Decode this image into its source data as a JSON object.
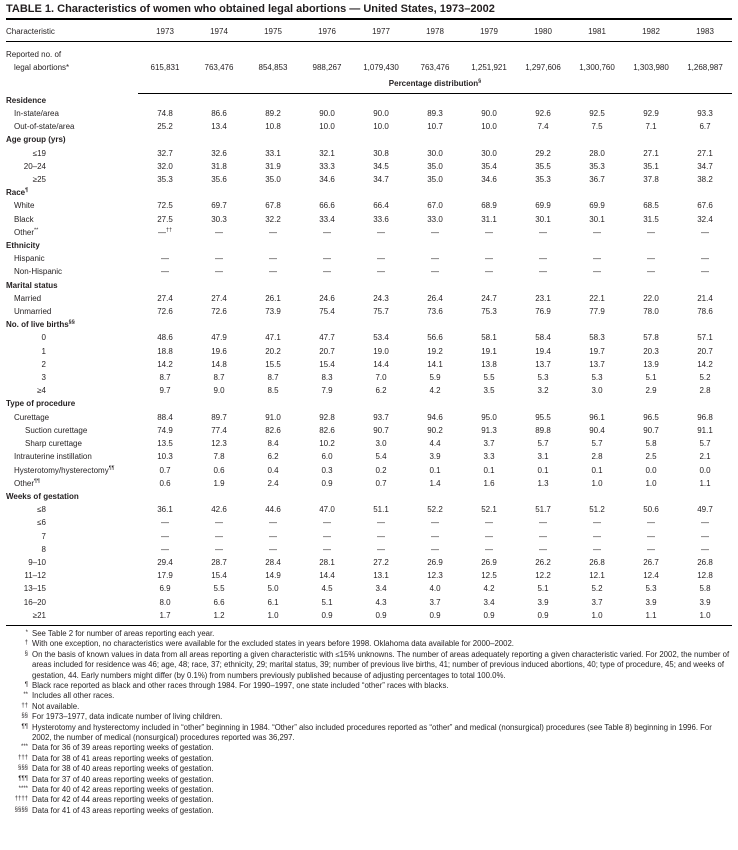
{
  "page": {
    "title": "TABLE 1. Characteristics of women who obtained legal abortions — United States, 1973–2002"
  },
  "table": {
    "col_header": "Characteristic",
    "years": [
      "1973",
      "1974",
      "1975",
      "1976",
      "1977",
      "1978",
      "1979",
      "1980",
      "1981",
      "1982",
      "1983"
    ],
    "reported": {
      "label_line1": "Reported no. of",
      "label_line2": "legal abortions*",
      "values": [
        "615,831",
        "763,476",
        "854,853",
        "988,267",
        "1,079,430",
        "763,476",
        "1,251,921",
        "1,297,606",
        "1,300,760",
        "1,303,980",
        "1,268,987"
      ]
    },
    "percentage_header": {
      "text": "Percentage distribution",
      "sup": "§"
    },
    "sections": [
      {
        "header": "Residence",
        "sup": "",
        "rows": [
          {
            "label": "In-state/area",
            "sup": "",
            "ind": "t1",
            "values": [
              "74.8",
              "86.6",
              "89.2",
              "90.0",
              "90.0",
              "89.3",
              "90.0",
              "92.6",
              "92.5",
              "92.9",
              "93.3"
            ]
          },
          {
            "label": "Out-of-state/area",
            "sup": "",
            "ind": "t1",
            "values": [
              "25.2",
              "13.4",
              "10.8",
              "10.0",
              "10.0",
              "10.7",
              "10.0",
              "7.4",
              "7.5",
              "7.1",
              "6.7"
            ]
          }
        ]
      },
      {
        "header": "Age group (yrs)",
        "sup": "",
        "rows": [
          {
            "label": "≤19",
            "sup": "",
            "ind": "n",
            "values": [
              "32.7",
              "32.6",
              "33.1",
              "32.1",
              "30.8",
              "30.0",
              "30.0",
              "29.2",
              "28.0",
              "27.1",
              "27.1"
            ]
          },
          {
            "label": "20–24",
            "sup": "",
            "ind": "n",
            "values": [
              "32.0",
              "31.8",
              "31.9",
              "33.3",
              "34.5",
              "35.0",
              "35.4",
              "35.5",
              "35.3",
              "35.1",
              "34.7"
            ]
          },
          {
            "label": "≥25",
            "sup": "",
            "ind": "n",
            "values": [
              "35.3",
              "35.6",
              "35.0",
              "34.6",
              "34.7",
              "35.0",
              "34.6",
              "35.3",
              "36.7",
              "37.8",
              "38.2"
            ]
          }
        ]
      },
      {
        "header": "Race",
        "sup": "¶",
        "rows": [
          {
            "label": "White",
            "sup": "",
            "ind": "t1",
            "values": [
              "72.5",
              "69.7",
              "67.8",
              "66.6",
              "66.4",
              "67.0",
              "68.9",
              "69.9",
              "69.9",
              "68.5",
              "67.6"
            ]
          },
          {
            "label": "Black",
            "sup": "",
            "ind": "t1",
            "values": [
              "27.5",
              "30.3",
              "32.2",
              "33.4",
              "33.6",
              "33.0",
              "31.1",
              "30.1",
              "30.1",
              "31.5",
              "32.4"
            ]
          },
          {
            "label": "Other",
            "sup": "**",
            "ind": "t1",
            "values": [
              "—††",
              "—",
              "—",
              "—",
              "—",
              "—",
              "—",
              "—",
              "—",
              "—",
              "—"
            ]
          }
        ]
      },
      {
        "header": "Ethnicity",
        "sup": "",
        "rows": [
          {
            "label": "Hispanic",
            "sup": "",
            "ind": "t1",
            "values": [
              "—",
              "—",
              "—",
              "—",
              "—",
              "—",
              "—",
              "—",
              "—",
              "—",
              "—"
            ]
          },
          {
            "label": "Non-Hispanic",
            "sup": "",
            "ind": "t1",
            "values": [
              "—",
              "—",
              "—",
              "—",
              "—",
              "—",
              "—",
              "—",
              "—",
              "—",
              "—"
            ]
          }
        ]
      },
      {
        "header": "Marital status",
        "sup": "",
        "rows": [
          {
            "label": "Married",
            "sup": "",
            "ind": "t1",
            "values": [
              "27.4",
              "27.4",
              "26.1",
              "24.6",
              "24.3",
              "26.4",
              "24.7",
              "23.1",
              "22.1",
              "22.0",
              "21.4"
            ]
          },
          {
            "label": "Unmarried",
            "sup": "",
            "ind": "t1",
            "values": [
              "72.6",
              "72.6",
              "73.9",
              "75.4",
              "75.7",
              "73.6",
              "75.3",
              "76.9",
              "77.9",
              "78.0",
              "78.6"
            ]
          }
        ]
      },
      {
        "header": "No. of live births",
        "sup": "§§",
        "rows": [
          {
            "label": "0",
            "sup": "",
            "ind": "n",
            "values": [
              "48.6",
              "47.9",
              "47.1",
              "47.7",
              "53.4",
              "56.6",
              "58.1",
              "58.4",
              "58.3",
              "57.8",
              "57.1"
            ]
          },
          {
            "label": "1",
            "sup": "",
            "ind": "n",
            "values": [
              "18.8",
              "19.6",
              "20.2",
              "20.7",
              "19.0",
              "19.2",
              "19.1",
              "19.4",
              "19.7",
              "20.3",
              "20.7"
            ]
          },
          {
            "label": "2",
            "sup": "",
            "ind": "n",
            "values": [
              "14.2",
              "14.8",
              "15.5",
              "15.4",
              "14.4",
              "14.1",
              "13.8",
              "13.7",
              "13.7",
              "13.9",
              "14.2"
            ]
          },
          {
            "label": "3",
            "sup": "",
            "ind": "n",
            "values": [
              "8.7",
              "8.7",
              "8.7",
              "8.3",
              "7.0",
              "5.9",
              "5.5",
              "5.3",
              "5.3",
              "5.1",
              "5.2"
            ]
          },
          {
            "label": "≥4",
            "sup": "",
            "ind": "n",
            "values": [
              "9.7",
              "9.0",
              "8.5",
              "7.9",
              "6.2",
              "4.2",
              "3.5",
              "3.2",
              "3.0",
              "2.9",
              "2.8"
            ]
          }
        ]
      },
      {
        "header": "Type of procedure",
        "sup": "",
        "rows": [
          {
            "label": "Curettage",
            "sup": "",
            "ind": "t1",
            "values": [
              "88.4",
              "89.7",
              "91.0",
              "92.8",
              "93.7",
              "94.6",
              "95.0",
              "95.5",
              "96.1",
              "96.5",
              "96.8"
            ]
          },
          {
            "label": "Suction curettage",
            "sup": "",
            "ind": "t2",
            "values": [
              "74.9",
              "77.4",
              "82.6",
              "82.6",
              "90.7",
              "90.2",
              "91.3",
              "89.8",
              "90.4",
              "90.7",
              "91.1"
            ]
          },
          {
            "label": "Sharp curettage",
            "sup": "",
            "ind": "t2",
            "values": [
              "13.5",
              "12.3",
              "8.4",
              "10.2",
              "3.0",
              "4.4",
              "3.7",
              "5.7",
              "5.7",
              "5.8",
              "5.7"
            ]
          },
          {
            "label": "Intrauterine instillation",
            "sup": "",
            "ind": "t1",
            "values": [
              "10.3",
              "7.8",
              "6.2",
              "6.0",
              "5.4",
              "3.9",
              "3.3",
              "3.1",
              "2.8",
              "2.5",
              "2.1"
            ]
          },
          {
            "label": "Hysterotomy/hysterectomy",
            "sup": "¶¶",
            "ind": "t1",
            "values": [
              "0.7",
              "0.6",
              "0.4",
              "0.3",
              "0.2",
              "0.1",
              "0.1",
              "0.1",
              "0.1",
              "0.0",
              "0.0"
            ]
          },
          {
            "label": "Other",
            "sup": "¶¶",
            "ind": "t1",
            "values": [
              "0.6",
              "1.9",
              "2.4",
              "0.9",
              "0.7",
              "1.4",
              "1.6",
              "1.3",
              "1.0",
              "1.0",
              "1.1"
            ]
          }
        ]
      },
      {
        "header": "Weeks of gestation",
        "sup": "",
        "rows": [
          {
            "label": "≤8",
            "sup": "",
            "ind": "n",
            "values": [
              "36.1",
              "42.6",
              "44.6",
              "47.0",
              "51.1",
              "52.2",
              "52.1",
              "51.7",
              "51.2",
              "50.6",
              "49.7"
            ]
          },
          {
            "label": "≤6",
            "sup": "",
            "ind": "n",
            "values": [
              "—",
              "—",
              "—",
              "—",
              "—",
              "—",
              "—",
              "—",
              "—",
              "—",
              "—"
            ]
          },
          {
            "label": "7",
            "sup": "",
            "ind": "n",
            "values": [
              "—",
              "—",
              "—",
              "—",
              "—",
              "—",
              "—",
              "—",
              "—",
              "—",
              "—"
            ]
          },
          {
            "label": "8",
            "sup": "",
            "ind": "n",
            "values": [
              "—",
              "—",
              "—",
              "—",
              "—",
              "—",
              "—",
              "—",
              "—",
              "—",
              "—"
            ]
          },
          {
            "label": "9–10",
            "sup": "",
            "ind": "n",
            "values": [
              "29.4",
              "28.7",
              "28.4",
              "28.1",
              "27.2",
              "26.9",
              "26.9",
              "26.2",
              "26.8",
              "26.7",
              "26.8"
            ]
          },
          {
            "label": "11–12",
            "sup": "",
            "ind": "n",
            "values": [
              "17.9",
              "15.4",
              "14.9",
              "14.4",
              "13.1",
              "12.3",
              "12.5",
              "12.2",
              "12.1",
              "12.4",
              "12.8"
            ]
          },
          {
            "label": "13–15",
            "sup": "",
            "ind": "n",
            "values": [
              "6.9",
              "5.5",
              "5.0",
              "4.5",
              "3.4",
              "4.0",
              "4.2",
              "5.1",
              "5.2",
              "5.3",
              "5.8"
            ]
          },
          {
            "label": "16–20",
            "sup": "",
            "ind": "n",
            "values": [
              "8.0",
              "6.6",
              "6.1",
              "5.1",
              "4.3",
              "3.7",
              "3.4",
              "3.9",
              "3.7",
              "3.9",
              "3.9"
            ]
          },
          {
            "label": "≥21",
            "sup": "",
            "ind": "n",
            "values": [
              "1.7",
              "1.2",
              "1.0",
              "0.9",
              "0.9",
              "0.9",
              "0.9",
              "0.9",
              "1.0",
              "1.1",
              "1.0"
            ]
          }
        ]
      }
    ]
  },
  "footnotes": [
    {
      "marker": "*",
      "text": "See Table 2 for number of areas reporting each year."
    },
    {
      "marker": "†",
      "text": "With one exception, no characteristics were available for the excluded states in years before 1998. Oklahoma data available for 2000–2002."
    },
    {
      "marker": "§",
      "text": "On the basis of known values in data from all areas reporting a given characteristic with ≤15% unknowns. The number of areas adequately reporting a given characteristic varied. For 2002, the number of areas included for residence was 46; age, 48; race, 37; ethnicity, 29; marital status, 39; number of previous live births, 41; number of previous induced abortions, 40; type of procedure, 45; and weeks of gestation, 44. Early numbers might differ (by 0.1%) from numbers previously published because of adjusting percentages to total 100.0%."
    },
    {
      "marker": "¶",
      "text": "Black race reported as black and other races through 1984. For 1990–1997, one state included “other” races with blacks."
    },
    {
      "marker": "**",
      "text": "Includes all other races."
    },
    {
      "marker": "††",
      "text": "Not available."
    },
    {
      "marker": "§§",
      "text": "For 1973–1977, data indicate number of living children."
    },
    {
      "marker": "¶¶",
      "text": "Hysterotomy and hysterectomy included in “other” beginning in 1984. “Other” also included procedures reported as “other” and medical (nonsurgical) procedures (see Table 8) beginning in 1996. For 2002, the number of medical (nonsurgical) procedures reported was 36,297."
    },
    {
      "marker": "***",
      "text": "Data for 36 of 39 areas reporting weeks of gestation."
    },
    {
      "marker": "†††",
      "text": "Data for 38 of 41 areas reporting weeks of gestation."
    },
    {
      "marker": "§§§",
      "text": "Data for 38 of 40 areas reporting weeks of gestation."
    },
    {
      "marker": "¶¶¶",
      "text": "Data for 37 of 40 areas reporting weeks of gestation."
    },
    {
      "marker": "****",
      "text": "Data for 40 of 42 areas reporting weeks of gestation."
    },
    {
      "marker": "††††",
      "text": "Data for 42 of 44 areas reporting weeks of gestation."
    },
    {
      "marker": "§§§§",
      "text": "Data for 41 of 43 areas reporting weeks of gestation."
    }
  ]
}
